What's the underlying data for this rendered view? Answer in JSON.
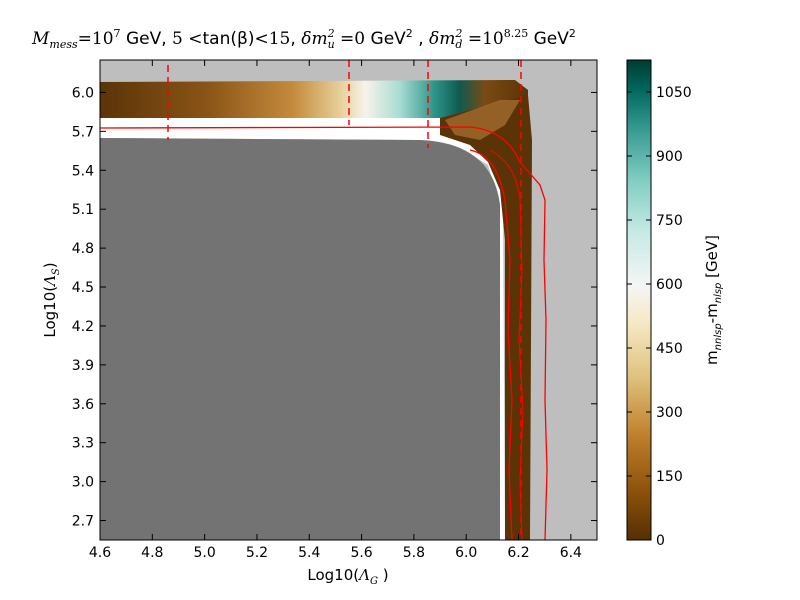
{
  "chart_data": {
    "type": "heatmap",
    "title": {
      "t1": "M",
      "t1s": "mess",
      "t2": "=10",
      "t2p": "7",
      "t3": "  GeV, ",
      "t4": "5",
      "t5": " <",
      "t6": "tan(β)",
      "t7": "<15",
      "t8": ", ",
      "t9": "δm",
      "t9p": "2",
      "t9s": "u",
      "t10": " =0",
      "t11": " GeV",
      "t11p": "2",
      "t12": " , ",
      "t13": "δm",
      "t13p": "2",
      "t13s": "d",
      "t14": " =10",
      "t14p": "8.25",
      "t15": "  GeV",
      "t15p": "2"
    },
    "xlabel": {
      "main": "Log10(",
      "sym": "Λ",
      "sub": "G",
      "close": " )"
    },
    "ylabel": {
      "main": "Log10(",
      "sym": "Λ",
      "sub": "S",
      "close": ")"
    },
    "colorbar_label": {
      "m": "m",
      "sub1": "nnlsp",
      "dash": "-m",
      "sub2": "nlsp",
      "unit": " [GeV]"
    },
    "xlim": [
      4.6,
      6.5
    ],
    "ylim": [
      2.55,
      6.25
    ],
    "xticks": [
      "4.6",
      "4.8",
      "5.0",
      "5.2",
      "5.4",
      "5.6",
      "5.8",
      "6.0",
      "6.2",
      "6.4"
    ],
    "yticks": [
      "2.7",
      "3.0",
      "3.3",
      "3.6",
      "3.9",
      "4.2",
      "4.5",
      "4.8",
      "5.1",
      "5.4",
      "5.7",
      "6.0"
    ],
    "colorbar": {
      "range": [
        0,
        1125
      ],
      "ticks": [
        "0",
        "150",
        "300",
        "450",
        "600",
        "750",
        "900",
        "1050"
      ]
    },
    "colors": {
      "background": "#bebebe",
      "excluded_region": "#737373",
      "boundary_band": "#ffffff",
      "contour": "#ff0000",
      "cmap_low": "#543005",
      "cmap_mid": "#f5f5f5",
      "cmap_high": "#003c30"
    },
    "dashed_lines_x": [
      4.87,
      5.56,
      5.86,
      6.22
    ],
    "contour_y_level": 5.74,
    "contour_x_levels": [
      6.2,
      6.23,
      6.3
    ],
    "cmap": "BrBG",
    "grid": false,
    "legend": "none"
  }
}
